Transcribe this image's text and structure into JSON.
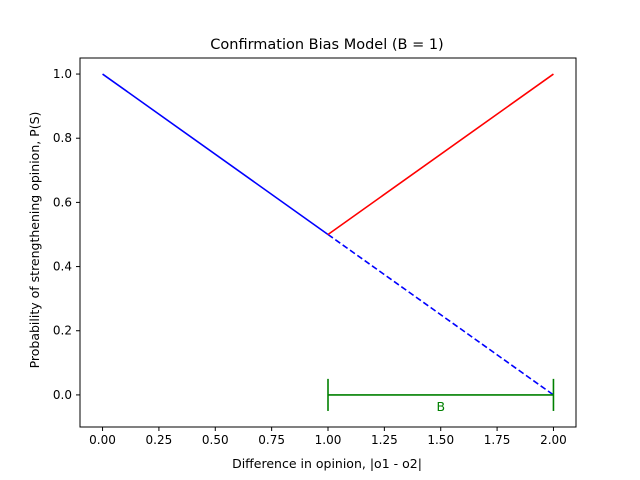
{
  "chart_data": {
    "type": "line",
    "title": "Confirmation Bias Model (B = 1)",
    "xlabel": "Difference in opinion, |o1 - o2|",
    "ylabel": "Probability of strengthening opinion, P(S)",
    "xlim": [
      -0.1,
      2.1
    ],
    "ylim": [
      -0.1,
      1.05
    ],
    "xticks": [
      0.0,
      0.25,
      0.5,
      0.75,
      1.0,
      1.25,
      1.5,
      1.75,
      2.0
    ],
    "xtick_labels": [
      "0.00",
      "0.25",
      "0.50",
      "0.75",
      "1.00",
      "1.25",
      "1.50",
      "1.75",
      "2.00"
    ],
    "yticks": [
      0.0,
      0.2,
      0.4,
      0.6,
      0.8,
      1.0
    ],
    "ytick_labels": [
      "0.0",
      "0.2",
      "0.4",
      "0.6",
      "0.8",
      "1.0"
    ],
    "grid": false,
    "legend": "none",
    "series": [
      {
        "x": [
          0.0,
          1.0
        ],
        "y": [
          1.0,
          0.5
        ],
        "color": "#0000ff",
        "style": "solid"
      },
      {
        "x": [
          1.0,
          2.0
        ],
        "y": [
          0.5,
          0.0
        ],
        "color": "#0000ff",
        "style": "dashed"
      },
      {
        "x": [
          1.0,
          2.0
        ],
        "y": [
          0.5,
          1.0
        ],
        "color": "#ff0000",
        "style": "solid"
      }
    ],
    "annotations": [
      {
        "type": "interval",
        "x_start": 1.0,
        "x_end": 2.0,
        "y": 0.0,
        "cap_half_height": 0.05,
        "color": "#008000",
        "label": "B",
        "label_x": 1.5,
        "label_y": -0.035
      }
    ]
  }
}
